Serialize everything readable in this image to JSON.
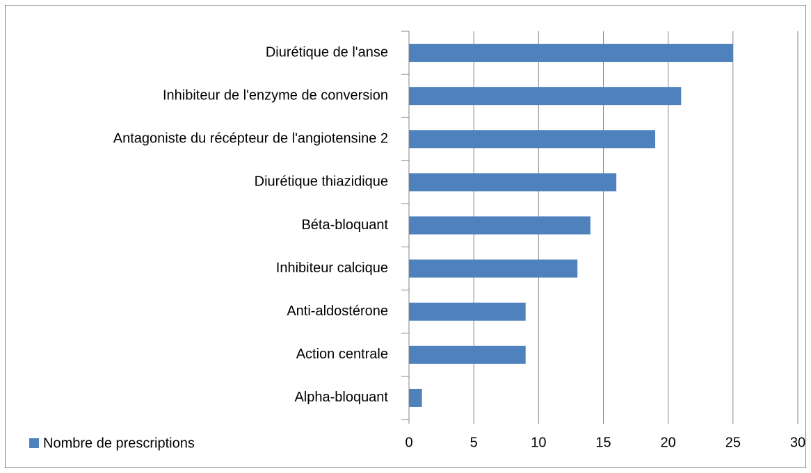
{
  "chart_data": {
    "type": "bar",
    "orientation": "horizontal",
    "categories": [
      "Diurétique de l'anse",
      "Inhibiteur de l'enzyme de conversion",
      "Antagoniste du récépteur de l'angiotensine 2",
      "Diurétique thiazidique",
      "Béta-bloquant",
      "Inhibiteur calcique",
      "Anti-aldostérone",
      "Action centrale",
      "Alpha-bloquant"
    ],
    "series": [
      {
        "name": "Nombre de prescriptions",
        "color": "#4f81bd",
        "values": [
          25,
          21,
          19,
          16,
          14,
          13,
          9,
          9,
          1
        ]
      }
    ],
    "xlim": [
      0,
      30
    ],
    "xticks": [
      0,
      5,
      10,
      15,
      20,
      25,
      30
    ],
    "grid": true,
    "legend": "bottom-left"
  }
}
